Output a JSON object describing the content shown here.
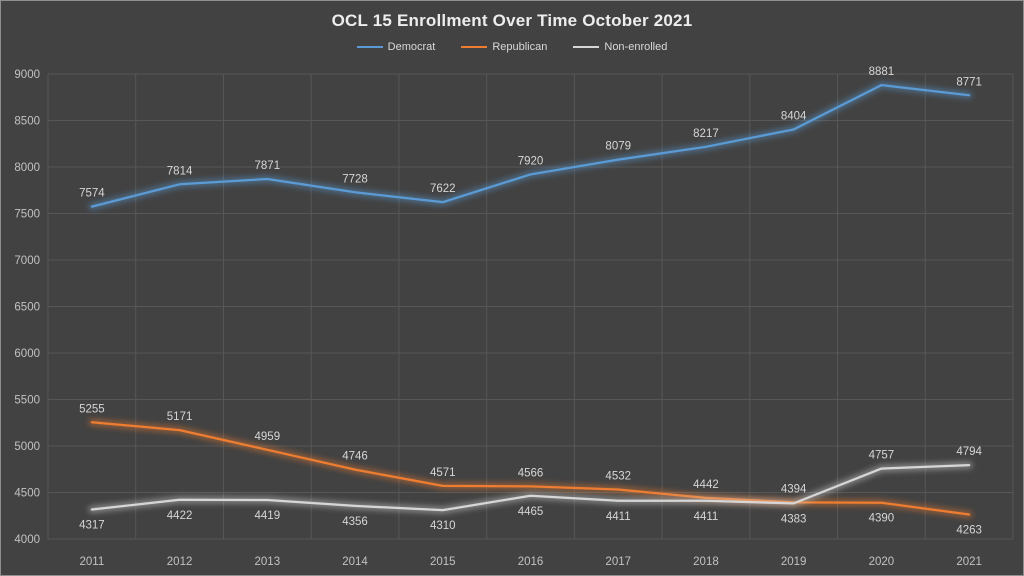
{
  "chart_data": {
    "type": "line",
    "title": "OCL 15 Enrollment Over Time October 2021",
    "categories": [
      "2011",
      "2012",
      "2013",
      "2014",
      "2015",
      "2016",
      "2017",
      "2018",
      "2019",
      "2020",
      "2021"
    ],
    "series": [
      {
        "name": "Democrat",
        "color": "#5b9bd5",
        "values": [
          7574,
          7814,
          7871,
          7728,
          7622,
          7920,
          8079,
          8217,
          8404,
          8881,
          8771
        ],
        "label_sides": [
          "above",
          "above",
          "above",
          "above",
          "above",
          "above",
          "above",
          "above",
          "above",
          "above",
          "above"
        ]
      },
      {
        "name": "Republican",
        "color": "#ed7d31",
        "values": [
          5255,
          5171,
          4959,
          4746,
          4571,
          4566,
          4532,
          4442,
          4394,
          4390,
          4263
        ],
        "label_sides": [
          "above",
          "above",
          "above",
          "above",
          "above",
          "above",
          "above",
          "above",
          "above",
          "below",
          "below"
        ]
      },
      {
        "name": "Non-enrolled",
        "color": "#d6d6d6",
        "values": [
          4317,
          4422,
          4419,
          4356,
          4310,
          4465,
          4411,
          4411,
          4383,
          4757,
          4794
        ],
        "label_sides": [
          "below",
          "below",
          "below",
          "below",
          "below",
          "below",
          "below",
          "below",
          "below",
          "above",
          "above"
        ]
      }
    ],
    "ylim": [
      4000,
      9000
    ],
    "ytick_step": 500,
    "yticks": [
      "4000",
      "4500",
      "5000",
      "5500",
      "6000",
      "6500",
      "7000",
      "7500",
      "8000",
      "8500",
      "9000"
    ],
    "legend_position": "top",
    "grid": true,
    "data_labels": true
  },
  "colors": {
    "background": "#424242",
    "gridline": "#575757",
    "axis_text": "#c2c2c2",
    "data_label_text": "#d6d6d6",
    "title_text": "#ededed",
    "frame_border": "#8f8f8f"
  }
}
